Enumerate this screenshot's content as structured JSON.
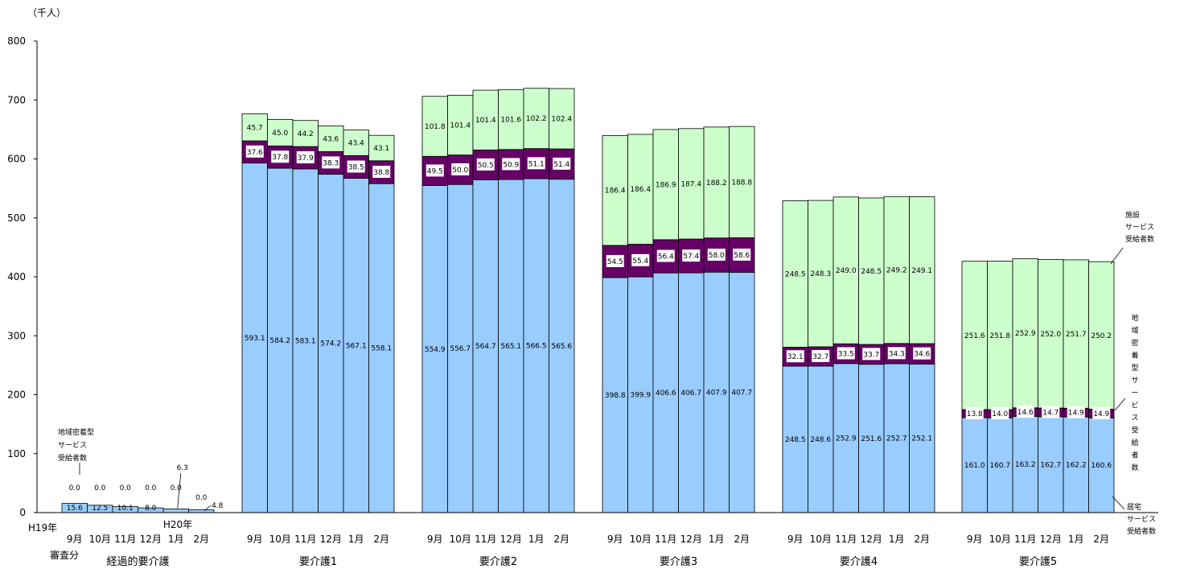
{
  "chart_data": {
    "type": "bar",
    "stacked": true,
    "unit_label": "（千人）",
    "ylim": [
      0,
      800
    ],
    "yticks": [
      0,
      100,
      200,
      300,
      400,
      500,
      600,
      700,
      800
    ],
    "months": [
      "9月",
      "10月",
      "11月",
      "12月",
      "1月",
      "2月"
    ],
    "colors": {
      "home": "#99ccff",
      "community": "#660066",
      "facility": "#ccffcc",
      "label_box": "#ffffff"
    },
    "groups": [
      {
        "name": "経過的要介護",
        "home": [
          15.6,
          12.5,
          10.1,
          8.0,
          6.3,
          4.8
        ],
        "community": [
          0.0,
          0.0,
          0.0,
          0.0,
          0.0,
          0.0
        ],
        "facility": [
          0.0,
          0.0,
          0.0,
          0.0,
          0.0,
          0.0
        ]
      },
      {
        "name": "要介護1",
        "home": [
          593.1,
          584.2,
          583.1,
          574.2,
          567.1,
          558.1
        ],
        "community": [
          37.6,
          37.8,
          37.9,
          38.3,
          38.5,
          38.8
        ],
        "facility": [
          45.7,
          45.0,
          44.2,
          43.6,
          43.4,
          43.1
        ]
      },
      {
        "name": "要介護2",
        "home": [
          554.9,
          556.7,
          564.7,
          565.1,
          566.5,
          565.6
        ],
        "community": [
          49.5,
          50.0,
          50.5,
          50.9,
          51.1,
          51.4
        ],
        "facility": [
          101.8,
          101.4,
          101.4,
          101.6,
          102.2,
          102.4
        ]
      },
      {
        "name": "要介護3",
        "home": [
          398.8,
          399.9,
          406.6,
          406.7,
          407.9,
          407.7
        ],
        "community": [
          54.5,
          55.4,
          56.4,
          57.4,
          58.0,
          58.6
        ],
        "facility": [
          186.4,
          186.4,
          186.9,
          187.4,
          188.2,
          188.8
        ]
      },
      {
        "name": "要介護4",
        "home": [
          248.5,
          248.6,
          252.9,
          251.6,
          252.7,
          252.1
        ],
        "community": [
          32.1,
          32.7,
          33.5,
          33.7,
          34.3,
          34.6
        ],
        "facility": [
          248.5,
          248.3,
          249.0,
          248.5,
          249.2,
          249.1
        ]
      },
      {
        "name": "要介護5",
        "home": [
          161.0,
          160.7,
          163.2,
          162.7,
          162.2,
          160.6
        ],
        "community": [
          13.8,
          14.0,
          14.6,
          14.7,
          14.9,
          14.9
        ],
        "facility": [
          251.6,
          251.8,
          252.9,
          252.0,
          251.7,
          250.2
        ]
      }
    ],
    "annotations": {
      "h19_year": "H19年",
      "h19_sub": "審査分",
      "h20_year": "H20年",
      "community_left": [
        "地域密着型",
        "サービス",
        "受給者数"
      ],
      "facility_right": [
        "施設",
        "サービス",
        "受給者数"
      ],
      "community_right": "地域密着型サービス受給者数",
      "home_right": [
        "居宅",
        "サービス",
        "受給者数"
      ]
    }
  }
}
